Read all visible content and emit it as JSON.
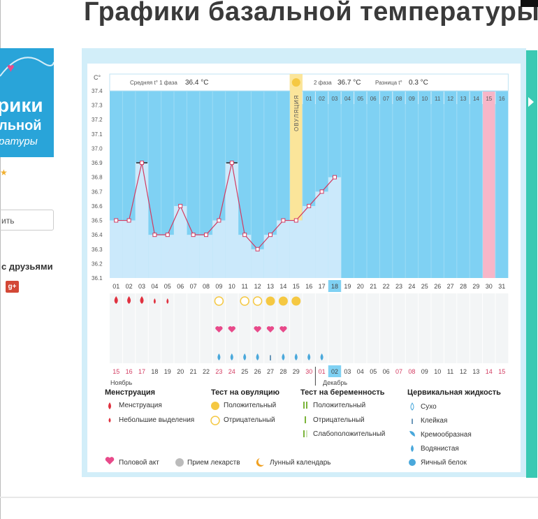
{
  "page": {
    "title": "Графики базальной температуры"
  },
  "promo": {
    "line1": "рики",
    "line2": "льной",
    "line3": "ратуры"
  },
  "sidebar": {
    "input_text": "ить",
    "share_label": "с друзьями",
    "gplus_label": "g+"
  },
  "chart_data": {
    "type": "line",
    "yunit": "C°",
    "yticks": [
      "37.4",
      "37.3",
      "37.2",
      "37.1",
      "37.0",
      "36.9",
      "36.8",
      "36.7",
      "36.6",
      "36.5",
      "36.4",
      "36.3",
      "36.2",
      "36.1"
    ],
    "ylim": [
      36.1,
      37.4
    ],
    "phase1_label": "Средняя t° 1 фаза",
    "phase1_value": "36.4 °C",
    "phase2_label": "2 фаза",
    "phase2_value": "36.7 °C",
    "diff_label": "Разница t°",
    "diff_value": "0.3 °C",
    "ovulation_label": "ОВУЛЯЦИЯ",
    "luteal_days": [
      "01",
      "02",
      "03",
      "04",
      "05",
      "06",
      "07",
      "08",
      "09",
      "10",
      "11",
      "12",
      "13",
      "14",
      "15",
      "16"
    ],
    "cycle_days": [
      "01",
      "02",
      "03",
      "04",
      "05",
      "06",
      "07",
      "08",
      "09",
      "10",
      "11",
      "12",
      "13",
      "14",
      "15",
      "16",
      "17",
      "18",
      "19",
      "20",
      "21",
      "22",
      "23",
      "24",
      "25",
      "26",
      "27",
      "28",
      "29",
      "30",
      "31"
    ],
    "highlight_day": "18",
    "temperatures": [
      36.5,
      36.5,
      36.9,
      36.4,
      36.4,
      36.6,
      36.4,
      36.4,
      36.5,
      36.9,
      36.4,
      36.3,
      36.4,
      36.5,
      36.5,
      36.6,
      36.7,
      36.8
    ],
    "open_markers": [
      3,
      10
    ],
    "dates": [
      "15",
      "16",
      "17",
      "18",
      "19",
      "20",
      "21",
      "22",
      "23",
      "24",
      "25",
      "26",
      "27",
      "28",
      "29",
      "30",
      "01",
      "02",
      "03",
      "04",
      "05",
      "06",
      "07",
      "08",
      "09",
      "10",
      "11",
      "12",
      "13",
      "14",
      "15"
    ],
    "red_dates": [
      "16",
      "17",
      "23",
      "24",
      "30",
      "01",
      "07",
      "08",
      "14",
      "15"
    ],
    "month1": "Ноябрь",
    "month2": "Декабрь",
    "menstruation_days": [
      1,
      2,
      3,
      4,
      5
    ],
    "ovulation_neg_days": [
      9,
      11,
      12
    ],
    "ovulation_pos_days": [
      13,
      14,
      15
    ],
    "intercourse_days": [
      9,
      10,
      12,
      13,
      14
    ],
    "fluid_days": [
      9,
      10,
      11,
      12,
      13,
      14,
      15,
      16,
      17
    ]
  },
  "legend": {
    "menstruation": {
      "title": "Менструация",
      "items": [
        "Менструация",
        "Небольшие выделения"
      ]
    },
    "ovulation_test": {
      "title": "Тест на овуляцию",
      "items": [
        "Положительный",
        "Отрицательный"
      ]
    },
    "pregnancy_test": {
      "title": "Тест на беременность",
      "items": [
        "Положительный",
        "Отрицательный",
        "Слабоположительный"
      ]
    },
    "cervical": {
      "title": "Цервикальная жидкость",
      "items": [
        "Сухо",
        "Клейкая",
        "Кремообразная",
        "Водянистая",
        "Яичный белок"
      ]
    },
    "bottom": [
      "Половой акт",
      "Прием лекарств",
      "Лунный календарь"
    ]
  },
  "colors": {
    "chart_bg": "#7fd1f3",
    "bar": "#cbe9fb",
    "ovulation": "#fbe59a",
    "period_pink": "#f7b6c8",
    "accent_line": "#d23a60",
    "drop_red": "#e0313f",
    "drop_blue": "#4aa8db"
  }
}
